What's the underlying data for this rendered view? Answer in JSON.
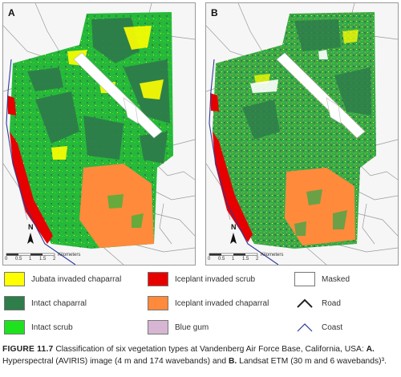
{
  "panels": [
    {
      "letter": "A",
      "north": "N",
      "scale_ticks": [
        "0",
        "0.5",
        "1",
        "1.5",
        "2"
      ],
      "scale_unit": "Kilometers"
    },
    {
      "letter": "B",
      "north": "N",
      "scale_ticks": [
        "0",
        "0.5",
        "1",
        "1.5",
        "2"
      ],
      "scale_unit": "Kilometers"
    }
  ],
  "legend": [
    {
      "label": "Jubata invaded chaparral",
      "color": "#ffff00",
      "kind": "swatch"
    },
    {
      "label": "Iceplant invaded scrub",
      "color": "#e60000",
      "kind": "swatch"
    },
    {
      "label": "Masked",
      "color": "#ffffff",
      "kind": "swatch"
    },
    {
      "label": "Intact chaparral",
      "color": "#2e7d4a",
      "kind": "swatch"
    },
    {
      "label": "Iceplant invaded chaparral",
      "color": "#ff8a3c",
      "kind": "swatch"
    },
    {
      "label": "Road",
      "color": "#222222",
      "kind": "road-icon"
    },
    {
      "label": "Intact scrub",
      "color": "#1ee21e",
      "kind": "swatch"
    },
    {
      "label": "Blue gum",
      "color": "#d6b6d3",
      "kind": "swatch"
    },
    {
      "label": "Coast",
      "color": "#2b3a9c",
      "kind": "coast-icon"
    }
  ],
  "caption": {
    "title": "FIGURE 11.7",
    "text1": "Classification of six vegetation types at Vandenberg Air Force Base, California, USA: ",
    "bold_a": "A.",
    "text2": " Hyperspectral (AVIRIS) image (4 m and 174 wavebands) and ",
    "bold_b": "B.",
    "text3": " Landsat ETM (30 m and 6 wavebands)³."
  }
}
